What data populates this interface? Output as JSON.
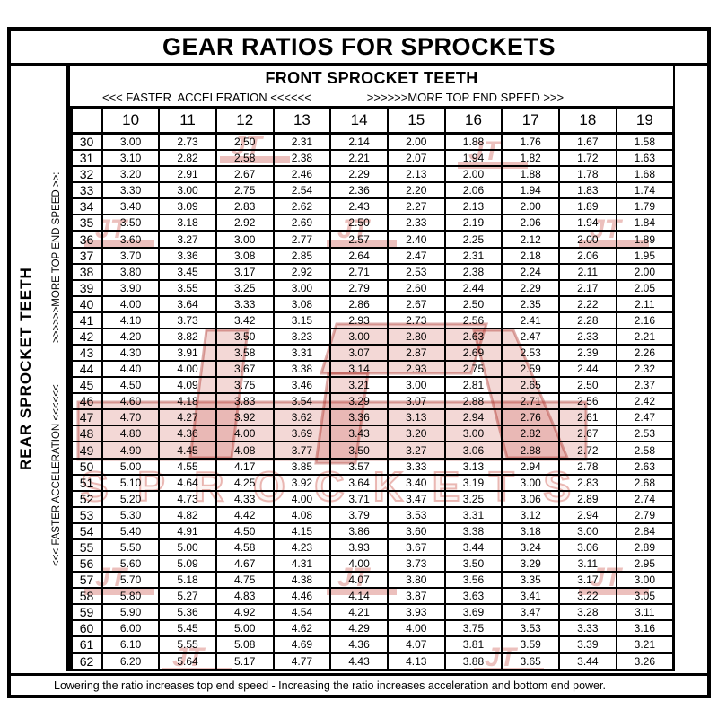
{
  "title": "GEAR RATIOS FOR SPROCKETS",
  "front_header": "FRONT SPROCKET TEETH",
  "front_arrows": {
    "left": "<<< FASTER  ACCELERATION <<<<<<",
    "right": ">>>>>>MORE TOP END SPEED >>>"
  },
  "left_labels": {
    "primary": "REAR SPROCKET TEETH",
    "secondary_bottom": "<<< FASTER  ACCELERATION <<<<<<",
    "secondary_top": ">>>>>>MORE TOP END SPEED >>:"
  },
  "footer_note": "Lowering the ratio increases top end speed - Increasing the ratio increases acceleration and bottom end power.",
  "watermark": {
    "monogram": "JT",
    "word": "SPROCKETS",
    "color": "#c53c32"
  },
  "table": {
    "corner_label": "",
    "front_teeth": [
      "10",
      "11",
      "12",
      "13",
      "14",
      "15",
      "16",
      "17",
      "18",
      "19"
    ],
    "rows": [
      {
        "rear": "30",
        "values": [
          "3.00",
          "2.73",
          "2.50",
          "2.31",
          "2.14",
          "2.00",
          "1.88",
          "1.76",
          "1.67",
          "1.58"
        ]
      },
      {
        "rear": "31",
        "values": [
          "3.10",
          "2.82",
          "2.58",
          "2.38",
          "2.21",
          "2.07",
          "1.94",
          "1.82",
          "1.72",
          "1.63"
        ]
      },
      {
        "rear": "32",
        "values": [
          "3.20",
          "2.91",
          "2.67",
          "2.46",
          "2.29",
          "2.13",
          "2.00",
          "1.88",
          "1.78",
          "1.68"
        ]
      },
      {
        "rear": "33",
        "values": [
          "3.30",
          "3.00",
          "2.75",
          "2.54",
          "2.36",
          "2.20",
          "2.06",
          "1.94",
          "1.83",
          "1.74"
        ]
      },
      {
        "rear": "34",
        "values": [
          "3.40",
          "3.09",
          "2.83",
          "2.62",
          "2.43",
          "2.27",
          "2.13",
          "2.00",
          "1.89",
          "1.79"
        ]
      },
      {
        "rear": "35",
        "values": [
          "3.50",
          "3.18",
          "2.92",
          "2.69",
          "2.50",
          "2.33",
          "2.19",
          "2.06",
          "1.94",
          "1.84"
        ]
      },
      {
        "rear": "36",
        "values": [
          "3.60",
          "3.27",
          "3.00",
          "2.77",
          "2.57",
          "2.40",
          "2.25",
          "2.12",
          "2.00",
          "1.89"
        ]
      },
      {
        "rear": "37",
        "values": [
          "3.70",
          "3.36",
          "3.08",
          "2.85",
          "2.64",
          "2.47",
          "2.31",
          "2.18",
          "2.06",
          "1.95"
        ]
      },
      {
        "rear": "38",
        "values": [
          "3.80",
          "3.45",
          "3.17",
          "2.92",
          "2.71",
          "2.53",
          "2.38",
          "2.24",
          "2.11",
          "2.00"
        ]
      },
      {
        "rear": "39",
        "values": [
          "3.90",
          "3.55",
          "3.25",
          "3.00",
          "2.79",
          "2.60",
          "2.44",
          "2.29",
          "2.17",
          "2.05"
        ]
      },
      {
        "rear": "40",
        "values": [
          "4.00",
          "3.64",
          "3.33",
          "3.08",
          "2.86",
          "2.67",
          "2.50",
          "2.35",
          "2.22",
          "2.11"
        ]
      },
      {
        "rear": "41",
        "values": [
          "4.10",
          "3.73",
          "3.42",
          "3.15",
          "2.93",
          "2.73",
          "2.56",
          "2.41",
          "2.28",
          "2.16"
        ]
      },
      {
        "rear": "42",
        "values": [
          "4.20",
          "3.82",
          "3.50",
          "3.23",
          "3.00",
          "2.80",
          "2.63",
          "2.47",
          "2.33",
          "2.21"
        ]
      },
      {
        "rear": "43",
        "values": [
          "4.30",
          "3.91",
          "3.58",
          "3.31",
          "3.07",
          "2.87",
          "2.69",
          "2.53",
          "2.39",
          "2.26"
        ]
      },
      {
        "rear": "44",
        "values": [
          "4.40",
          "4.00",
          "3.67",
          "3.38",
          "3.14",
          "2.93",
          "2.75",
          "2.59",
          "2.44",
          "2.32"
        ]
      },
      {
        "rear": "45",
        "values": [
          "4.50",
          "4.09",
          "3.75",
          "3.46",
          "3.21",
          "3.00",
          "2.81",
          "2.65",
          "2.50",
          "2.37"
        ]
      },
      {
        "rear": "46",
        "values": [
          "4.60",
          "4.18",
          "3.83",
          "3.54",
          "3.29",
          "3.07",
          "2.88",
          "2.71",
          "2.56",
          "2.42"
        ]
      },
      {
        "rear": "47",
        "values": [
          "4.70",
          "4.27",
          "3.92",
          "3.62",
          "3.36",
          "3.13",
          "2.94",
          "2.76",
          "2.61",
          "2.47"
        ]
      },
      {
        "rear": "48",
        "values": [
          "4.80",
          "4.36",
          "4.00",
          "3.69",
          "3.43",
          "3.20",
          "3.00",
          "2.82",
          "2.67",
          "2.53"
        ]
      },
      {
        "rear": "49",
        "values": [
          "4.90",
          "4.45",
          "4.08",
          "3.77",
          "3.50",
          "3.27",
          "3.06",
          "2.88",
          "2.72",
          "2.58"
        ]
      },
      {
        "rear": "50",
        "values": [
          "5.00",
          "4.55",
          "4.17",
          "3.85",
          "3.57",
          "3.33",
          "3.13",
          "2.94",
          "2.78",
          "2.63"
        ]
      },
      {
        "rear": "51",
        "values": [
          "5.10",
          "4.64",
          "4.25",
          "3.92",
          "3.64",
          "3.40",
          "3.19",
          "3.00",
          "2.83",
          "2.68"
        ]
      },
      {
        "rear": "52",
        "values": [
          "5.20",
          "4.73",
          "4.33",
          "4.00",
          "3.71",
          "3.47",
          "3.25",
          "3.06",
          "2.89",
          "2.74"
        ]
      },
      {
        "rear": "53",
        "values": [
          "5.30",
          "4.82",
          "4.42",
          "4.08",
          "3.79",
          "3.53",
          "3.31",
          "3.12",
          "2.94",
          "2.79"
        ]
      },
      {
        "rear": "54",
        "values": [
          "5.40",
          "4.91",
          "4.50",
          "4.15",
          "3.86",
          "3.60",
          "3.38",
          "3.18",
          "3.00",
          "2.84"
        ]
      },
      {
        "rear": "55",
        "values": [
          "5.50",
          "5.00",
          "4.58",
          "4.23",
          "3.93",
          "3.67",
          "3.44",
          "3.24",
          "3.06",
          "2.89"
        ]
      },
      {
        "rear": "56",
        "values": [
          "5.60",
          "5.09",
          "4.67",
          "4.31",
          "4.00",
          "3.73",
          "3.50",
          "3.29",
          "3.11",
          "2.95"
        ]
      },
      {
        "rear": "57",
        "values": [
          "5.70",
          "5.18",
          "4.75",
          "4.38",
          "4.07",
          "3.80",
          "3.56",
          "3.35",
          "3.17",
          "3.00"
        ]
      },
      {
        "rear": "58",
        "values": [
          "5.80",
          "5.27",
          "4.83",
          "4.46",
          "4.14",
          "3.87",
          "3.63",
          "3.41",
          "3.22",
          "3.05"
        ]
      },
      {
        "rear": "59",
        "values": [
          "5.90",
          "5.36",
          "4.92",
          "4.54",
          "4.21",
          "3.93",
          "3.69",
          "3.47",
          "3.28",
          "3.11"
        ]
      },
      {
        "rear": "60",
        "values": [
          "6.00",
          "5.45",
          "5.00",
          "4.62",
          "4.29",
          "4.00",
          "3.75",
          "3.53",
          "3.33",
          "3.16"
        ]
      },
      {
        "rear": "61",
        "values": [
          "6.10",
          "5.55",
          "5.08",
          "4.69",
          "4.36",
          "4.07",
          "3.81",
          "3.59",
          "3.39",
          "3.21"
        ]
      },
      {
        "rear": "62",
        "values": [
          "6.20",
          "5.64",
          "5.17",
          "4.77",
          "4.43",
          "4.13",
          "3.88",
          "3.65",
          "3.44",
          "3.26"
        ]
      }
    ]
  }
}
